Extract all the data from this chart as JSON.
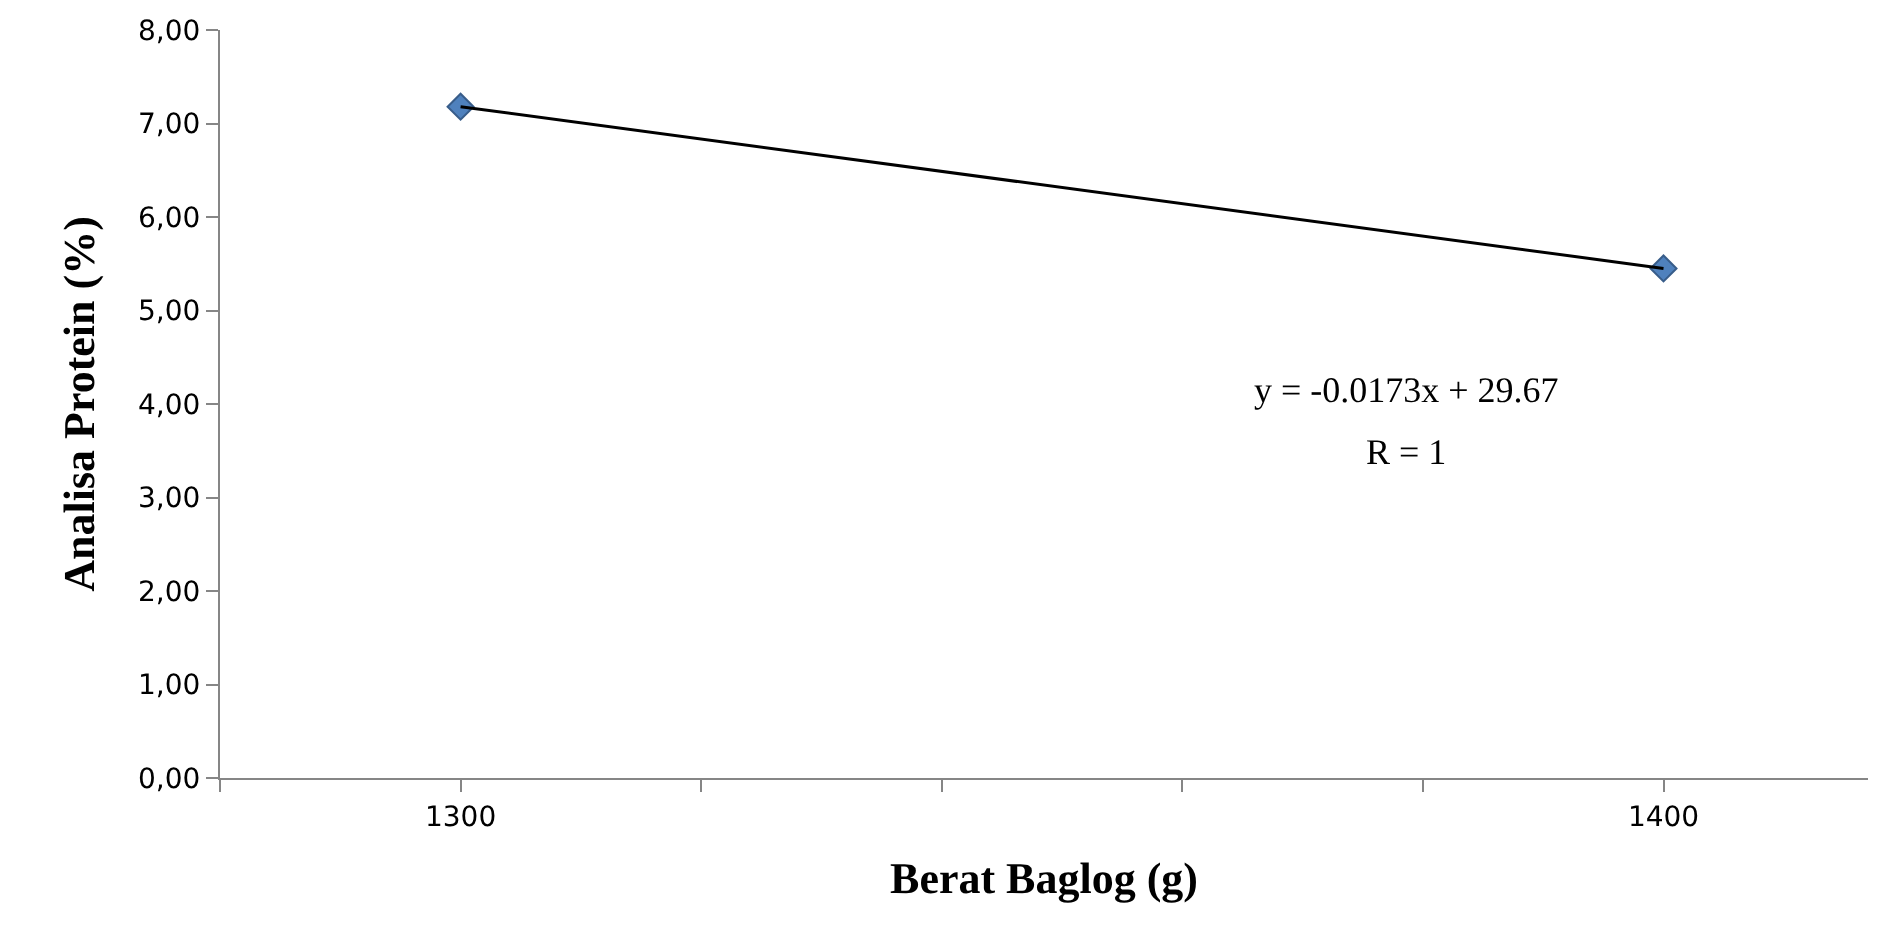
{
  "chart_data": {
    "type": "scatter",
    "xlabel": "Berat Baglog (g)",
    "ylabel": "Analisa Protein (%)",
    "x": [
      1300,
      1400
    ],
    "series": [
      {
        "color": "#4f81bd",
        "values": [
          7.18,
          5.45
        ],
        "marker": "diamond"
      },
      {
        "type": "line",
        "color": "#000000",
        "x": [
          1300,
          1400
        ],
        "values": [
          7.18,
          5.45
        ],
        "marker": "none"
      }
    ],
    "xlim": [
      1280,
      1417
    ],
    "xticks": [
      {
        "value": 1280,
        "label": null
      },
      1300,
      {
        "value": 1320,
        "label": null
      },
      {
        "value": 1340,
        "label": null
      },
      {
        "value": 1360,
        "label": null
      },
      {
        "value": 1380,
        "label": null
      },
      1400
    ],
    "ylim": [
      0,
      8
    ],
    "yticks": [
      {
        "value": 0,
        "label": "0,00"
      },
      {
        "value": 1,
        "label": "1,00"
      },
      {
        "value": 2,
        "label": "2,00"
      },
      {
        "value": 3,
        "label": "3,00"
      },
      {
        "value": 4,
        "label": "4,00"
      },
      {
        "value": 5,
        "label": "5,00"
      },
      {
        "value": 6,
        "label": "6,00"
      },
      {
        "value": 7,
        "label": "7,00"
      },
      {
        "value": 8,
        "label": "8,00"
      }
    ],
    "annotations": [
      "y = -0.0173x + 29.67",
      "R = 1"
    ]
  }
}
